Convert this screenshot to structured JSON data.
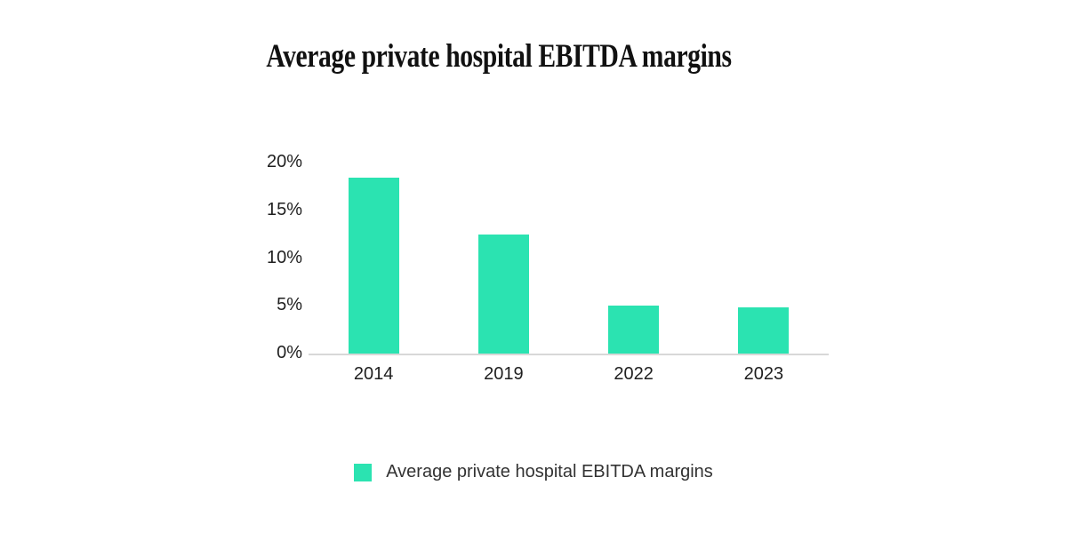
{
  "page": {
    "background_color": "#ffffff"
  },
  "chart_data": {
    "type": "bar",
    "title": "Average private hospital EBITDA margins",
    "categories": [
      "2014",
      "2019",
      "2022",
      "2023"
    ],
    "series": [
      {
        "name": "Average private hospital EBITDA margins",
        "values": [
          18.4,
          12.5,
          5.0,
          4.8
        ]
      }
    ],
    "xlabel": "",
    "ylabel": "",
    "ylim": [
      0,
      20
    ],
    "yticks": [
      0,
      5,
      10,
      15,
      20
    ],
    "ytick_labels": [
      "0%",
      "5%",
      "10%",
      "15%",
      "20%"
    ],
    "grid": false,
    "legend_position": "bottom",
    "bar_color": "#2be3b1",
    "axis_line_color": "#d8d8d8",
    "tick_text_color": "#1f1f1f",
    "title_color": "#111111",
    "legend_text_color": "#333333"
  },
  "legend": {
    "label": "Average private hospital EBITDA margins",
    "swatch_color": "#2be3b1"
  }
}
